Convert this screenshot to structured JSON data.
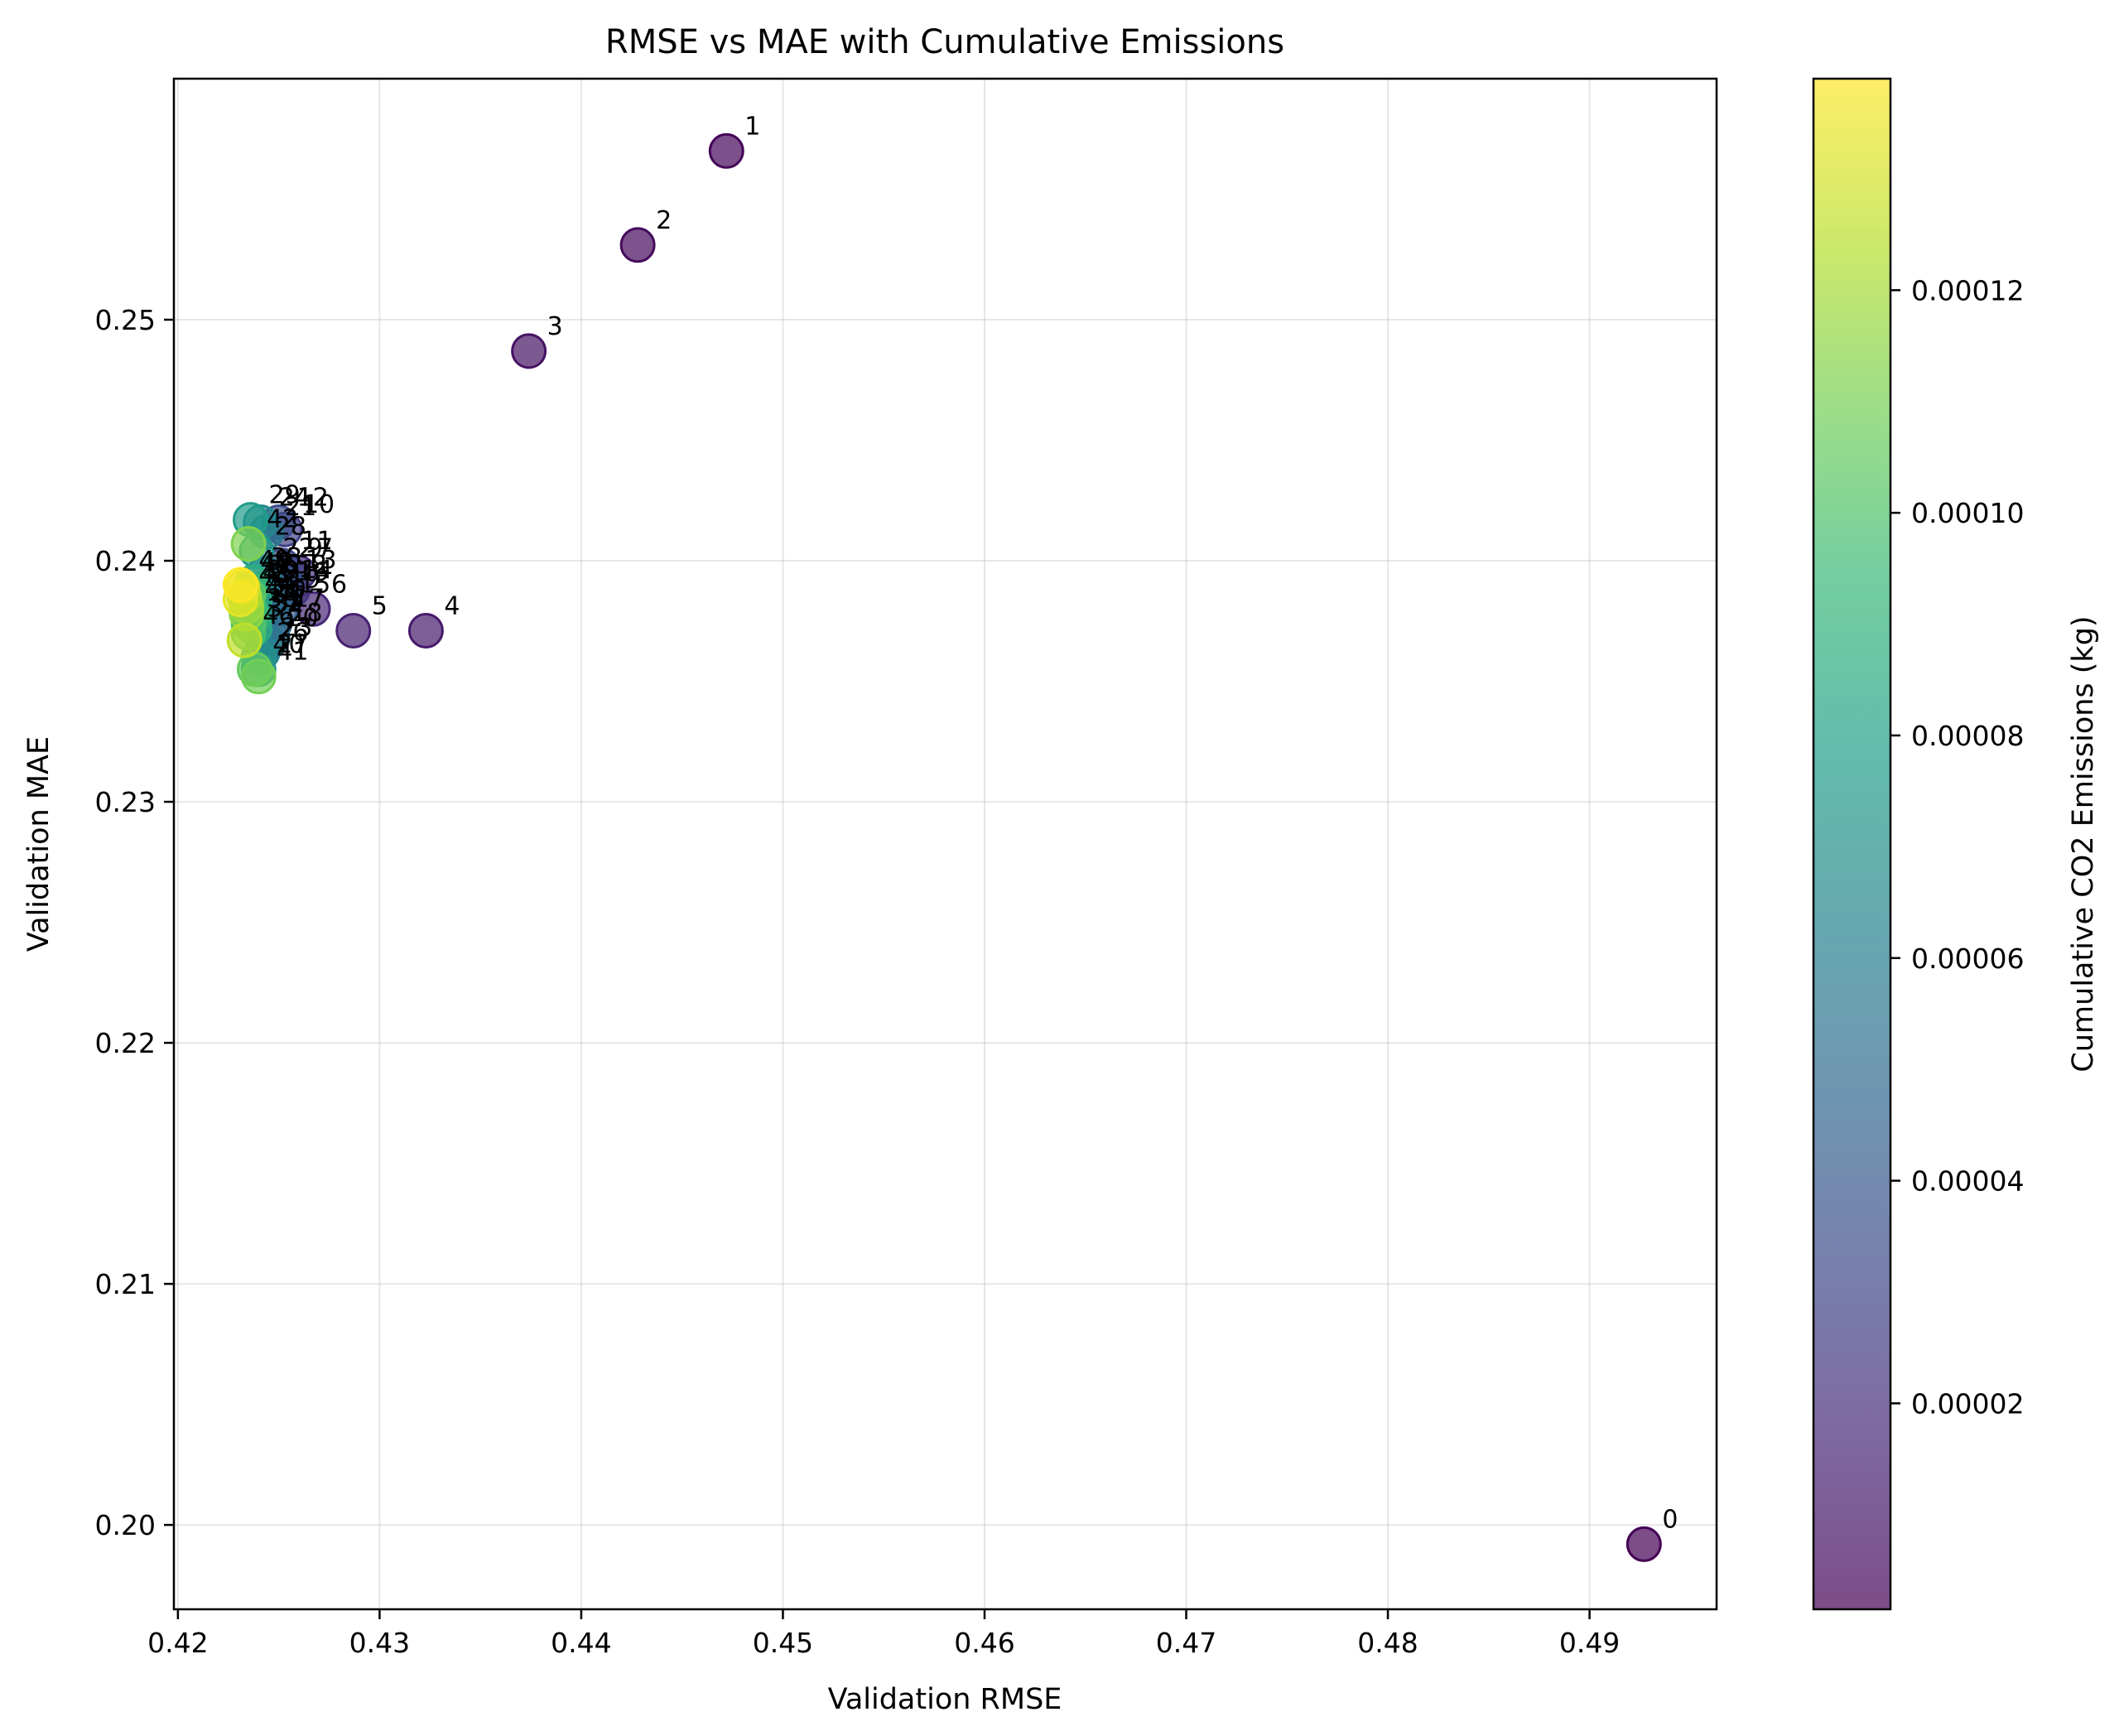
{
  "chart_data": {
    "type": "scatter",
    "title": "RMSE vs MAE with Cumulative Emissions",
    "xlabel": "Validation RMSE",
    "ylabel": "Validation MAE",
    "xlim": [
      0.4198,
      0.4963
    ],
    "ylim": [
      0.1965,
      0.26
    ],
    "x_ticks": [
      0.42,
      0.43,
      0.44,
      0.45,
      0.46,
      0.47,
      0.48,
      0.49
    ],
    "y_ticks": [
      0.2,
      0.21,
      0.22,
      0.23,
      0.24,
      0.25
    ],
    "grid": true,
    "colorbar": {
      "label": "Cumulative CO2 Emissions (kg)",
      "colormap": "viridis",
      "range": [
        1.5e-06,
        0.000139
      ],
      "ticks": [
        2e-05,
        4e-05,
        6e-05,
        8e-05,
        0.0001,
        0.00012
      ],
      "tick_labels": [
        "0.00002",
        "0.00004",
        "0.00006",
        "0.00008",
        "0.00010",
        "0.00012"
      ]
    },
    "points": [
      {
        "label": "0",
        "x": 0.4927,
        "y": 0.1992,
        "c": 1.5e-06
      },
      {
        "label": "1",
        "x": 0.4472,
        "y": 0.257,
        "c": 3e-06
      },
      {
        "label": "2",
        "x": 0.4428,
        "y": 0.2531,
        "c": 5e-06
      },
      {
        "label": "3",
        "x": 0.4374,
        "y": 0.2487,
        "c": 8e-06
      },
      {
        "label": "4",
        "x": 0.4323,
        "y": 0.2371,
        "c": 1.1e-05
      },
      {
        "label": "5",
        "x": 0.4287,
        "y": 0.2371,
        "c": 1.4e-05
      },
      {
        "label": "6",
        "x": 0.4267,
        "y": 0.238,
        "c": 1.7e-05
      },
      {
        "label": "7",
        "x": 0.426,
        "y": 0.2395,
        "c": 2e-05
      },
      {
        "label": "8",
        "x": 0.4257,
        "y": 0.2388,
        "c": 2.3e-05
      },
      {
        "label": "9",
        "x": 0.4255,
        "y": 0.2395,
        "c": 2.6e-05
      },
      {
        "label": "10",
        "x": 0.4253,
        "y": 0.2413,
        "c": 2.9e-05
      },
      {
        "label": "11",
        "x": 0.4252,
        "y": 0.2398,
        "c": 3.2e-05
      },
      {
        "label": "12",
        "x": 0.425,
        "y": 0.2416,
        "c": 3.5e-05
      },
      {
        "label": "13",
        "x": 0.4254,
        "y": 0.239,
        "c": 3.75e-05
      },
      {
        "label": "14",
        "x": 0.4252,
        "y": 0.2386,
        "c": 4e-05
      },
      {
        "label": "15",
        "x": 0.4251,
        "y": 0.238,
        "c": 4.25e-05
      },
      {
        "label": "16",
        "x": 0.425,
        "y": 0.2385,
        "c": 4.5e-05
      },
      {
        "label": "17",
        "x": 0.4248,
        "y": 0.2374,
        "c": 4.75e-05
      },
      {
        "label": "18",
        "x": 0.4247,
        "y": 0.2368,
        "c": 5e-05
      },
      {
        "label": "19",
        "x": 0.4246,
        "y": 0.2382,
        "c": 5.25e-05
      },
      {
        "label": "20",
        "x": 0.4245,
        "y": 0.2366,
        "c": 5.5e-05
      },
      {
        "label": "21",
        "x": 0.4244,
        "y": 0.2412,
        "c": 5.75e-05
      },
      {
        "label": "22",
        "x": 0.4243,
        "y": 0.2395,
        "c": 6e-05
      },
      {
        "label": "23",
        "x": 0.4242,
        "y": 0.2362,
        "c": 6.25e-05
      },
      {
        "label": "24",
        "x": 0.4241,
        "y": 0.2416,
        "c": 6.5e-05
      },
      {
        "label": "25",
        "x": 0.4241,
        "y": 0.2388,
        "c": 6.75e-05
      },
      {
        "label": "26",
        "x": 0.424,
        "y": 0.236,
        "c": 7e-05
      },
      {
        "label": "27",
        "x": 0.424,
        "y": 0.2355,
        "c": 7.25e-05
      },
      {
        "label": "28",
        "x": 0.4239,
        "y": 0.2404,
        "c": 7.5e-05
      },
      {
        "label": "29",
        "x": 0.4236,
        "y": 0.2417,
        "c": 7.75e-05
      },
      {
        "label": "30",
        "x": 0.4239,
        "y": 0.2378,
        "c": 8e-05
      },
      {
        "label": "31",
        "x": 0.4238,
        "y": 0.2384,
        "c": 8.25e-05
      },
      {
        "label": "32",
        "x": 0.4238,
        "y": 0.2372,
        "c": 8.5e-05
      },
      {
        "label": "33",
        "x": 0.4237,
        "y": 0.2391,
        "c": 8.75e-05
      },
      {
        "label": "34",
        "x": 0.4237,
        "y": 0.2376,
        "c": 9e-05
      },
      {
        "label": "35",
        "x": 0.4236,
        "y": 0.2388,
        "c": 9.25e-05
      },
      {
        "label": "36",
        "x": 0.4236,
        "y": 0.2379,
        "c": 9.5e-05
      },
      {
        "label": "37",
        "x": 0.4235,
        "y": 0.237,
        "c": 9.75e-05
      },
      {
        "label": "38",
        "x": 0.4235,
        "y": 0.2374,
        "c": 0.0001
      },
      {
        "label": "39",
        "x": 0.4235,
        "y": 0.2386,
        "c": 0.000103
      },
      {
        "label": "40",
        "x": 0.4238,
        "y": 0.2355,
        "c": 0.000106
      },
      {
        "label": "41",
        "x": 0.424,
        "y": 0.2352,
        "c": 0.000109
      },
      {
        "label": "42",
        "x": 0.4235,
        "y": 0.2407,
        "c": 0.000112
      },
      {
        "label": "43",
        "x": 0.4234,
        "y": 0.2378,
        "c": 0.000115
      },
      {
        "label": "44",
        "x": 0.4234,
        "y": 0.2381,
        "c": 0.000118
      },
      {
        "label": "45",
        "x": 0.4233,
        "y": 0.2385,
        "c": 0.000122
      },
      {
        "label": "46",
        "x": 0.4233,
        "y": 0.2367,
        "c": 0.000126
      },
      {
        "label": "47",
        "x": 0.4232,
        "y": 0.2389,
        "c": 0.00013
      },
      {
        "label": "48",
        "x": 0.4231,
        "y": 0.2384,
        "c": 0.000134
      },
      {
        "label": "49",
        "x": 0.4231,
        "y": 0.239,
        "c": 0.000139
      }
    ]
  }
}
